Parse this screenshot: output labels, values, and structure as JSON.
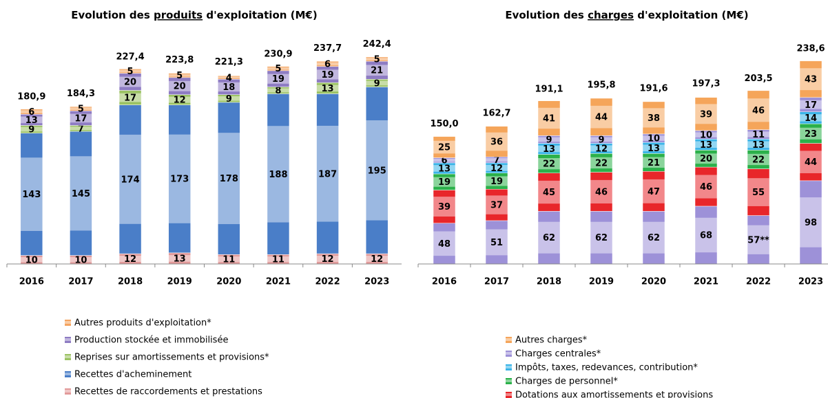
{
  "chart_data": [
    {
      "type": "stacked_bar",
      "title": [
        "Evolution des ",
        "produits",
        " d'exploitation (M€)"
      ],
      "categories": [
        "2016",
        "2017",
        "2018",
        "2019",
        "2020",
        "2021",
        "2022",
        "2023"
      ],
      "ylim": [
        0,
        250
      ],
      "series": [
        {
          "name": "Recettes de raccordements et prestations",
          "color": "#e29a9a",
          "values": [
            10,
            10,
            12,
            13,
            11,
            11,
            12,
            12
          ]
        },
        {
          "name": "Recettes d'acheminement",
          "color": "#4a7ec8",
          "values": [
            143,
            145,
            174,
            173,
            178,
            188,
            187,
            195
          ]
        },
        {
          "name": "Reprises sur amortissements et provisions*",
          "color": "#9bc262",
          "values": [
            9,
            7,
            17,
            12,
            9,
            8,
            13,
            9
          ]
        },
        {
          "name": "Production stockée et immobilisée",
          "color": "#8e7cc3",
          "values": [
            13,
            17,
            20,
            20,
            18,
            19,
            19,
            21
          ]
        },
        {
          "name": "Autres produits d'exploitation*",
          "color": "#f4a460",
          "values": [
            6,
            5,
            5,
            5,
            4,
            5,
            6,
            5
          ]
        }
      ],
      "totals": {
        "values": [
          180.9,
          184.3,
          227.4,
          223.8,
          221.3,
          230.9,
          237.7,
          242.4
        ],
        "value_labels": [
          "180,9",
          "184,3",
          "227,4",
          "223,8",
          "221,3",
          "230,9",
          "237,7",
          "242,4"
        ]
      }
    },
    {
      "type": "stacked_bar",
      "title": [
        "Evolution des ",
        "charges",
        " d'exploitation (M€)"
      ],
      "categories": [
        "2016",
        "2017",
        "2018",
        "2019",
        "2020",
        "2021",
        "2022",
        "2023"
      ],
      "ylim": [
        0,
        250
      ],
      "series": [
        {
          "name": null,
          "color": "#9d91d8",
          "values": [
            48,
            51,
            62,
            62,
            62,
            68,
            57,
            98
          ],
          "value_labels": [
            "48",
            "51",
            "62",
            "62",
            "62",
            "68",
            "57**",
            "98"
          ]
        },
        {
          "name": "Dotations aux amortissements et provisions",
          "color": "#e8262a",
          "values": [
            39,
            37,
            45,
            46,
            47,
            46,
            55,
            44
          ]
        },
        {
          "name": "Charges de personnel*",
          "color": "#2bb14a",
          "values": [
            19,
            19,
            22,
            22,
            21,
            20,
            22,
            23
          ]
        },
        {
          "name": "Impôts, taxes, redevances, contribution*",
          "color": "#3ab4e8",
          "values": [
            13,
            12,
            13,
            12,
            13,
            13,
            13,
            14
          ]
        },
        {
          "name": "Charges centrales*",
          "color": "#9d91d8",
          "values": [
            6,
            7,
            9,
            9,
            10,
            10,
            11,
            17
          ]
        },
        {
          "name": "Autres charges*",
          "color": "#f5a55a",
          "values": [
            25,
            36,
            41,
            44,
            38,
            39,
            46,
            43
          ]
        }
      ],
      "totals": {
        "values": [
          150.0,
          162.7,
          191.1,
          195.8,
          191.6,
          197.3,
          203.5,
          238.6
        ],
        "value_labels": [
          "150,0",
          "162,7",
          "191,1",
          "195,8",
          "191,6",
          "197,3",
          "203,5",
          "238,6"
        ]
      }
    }
  ]
}
